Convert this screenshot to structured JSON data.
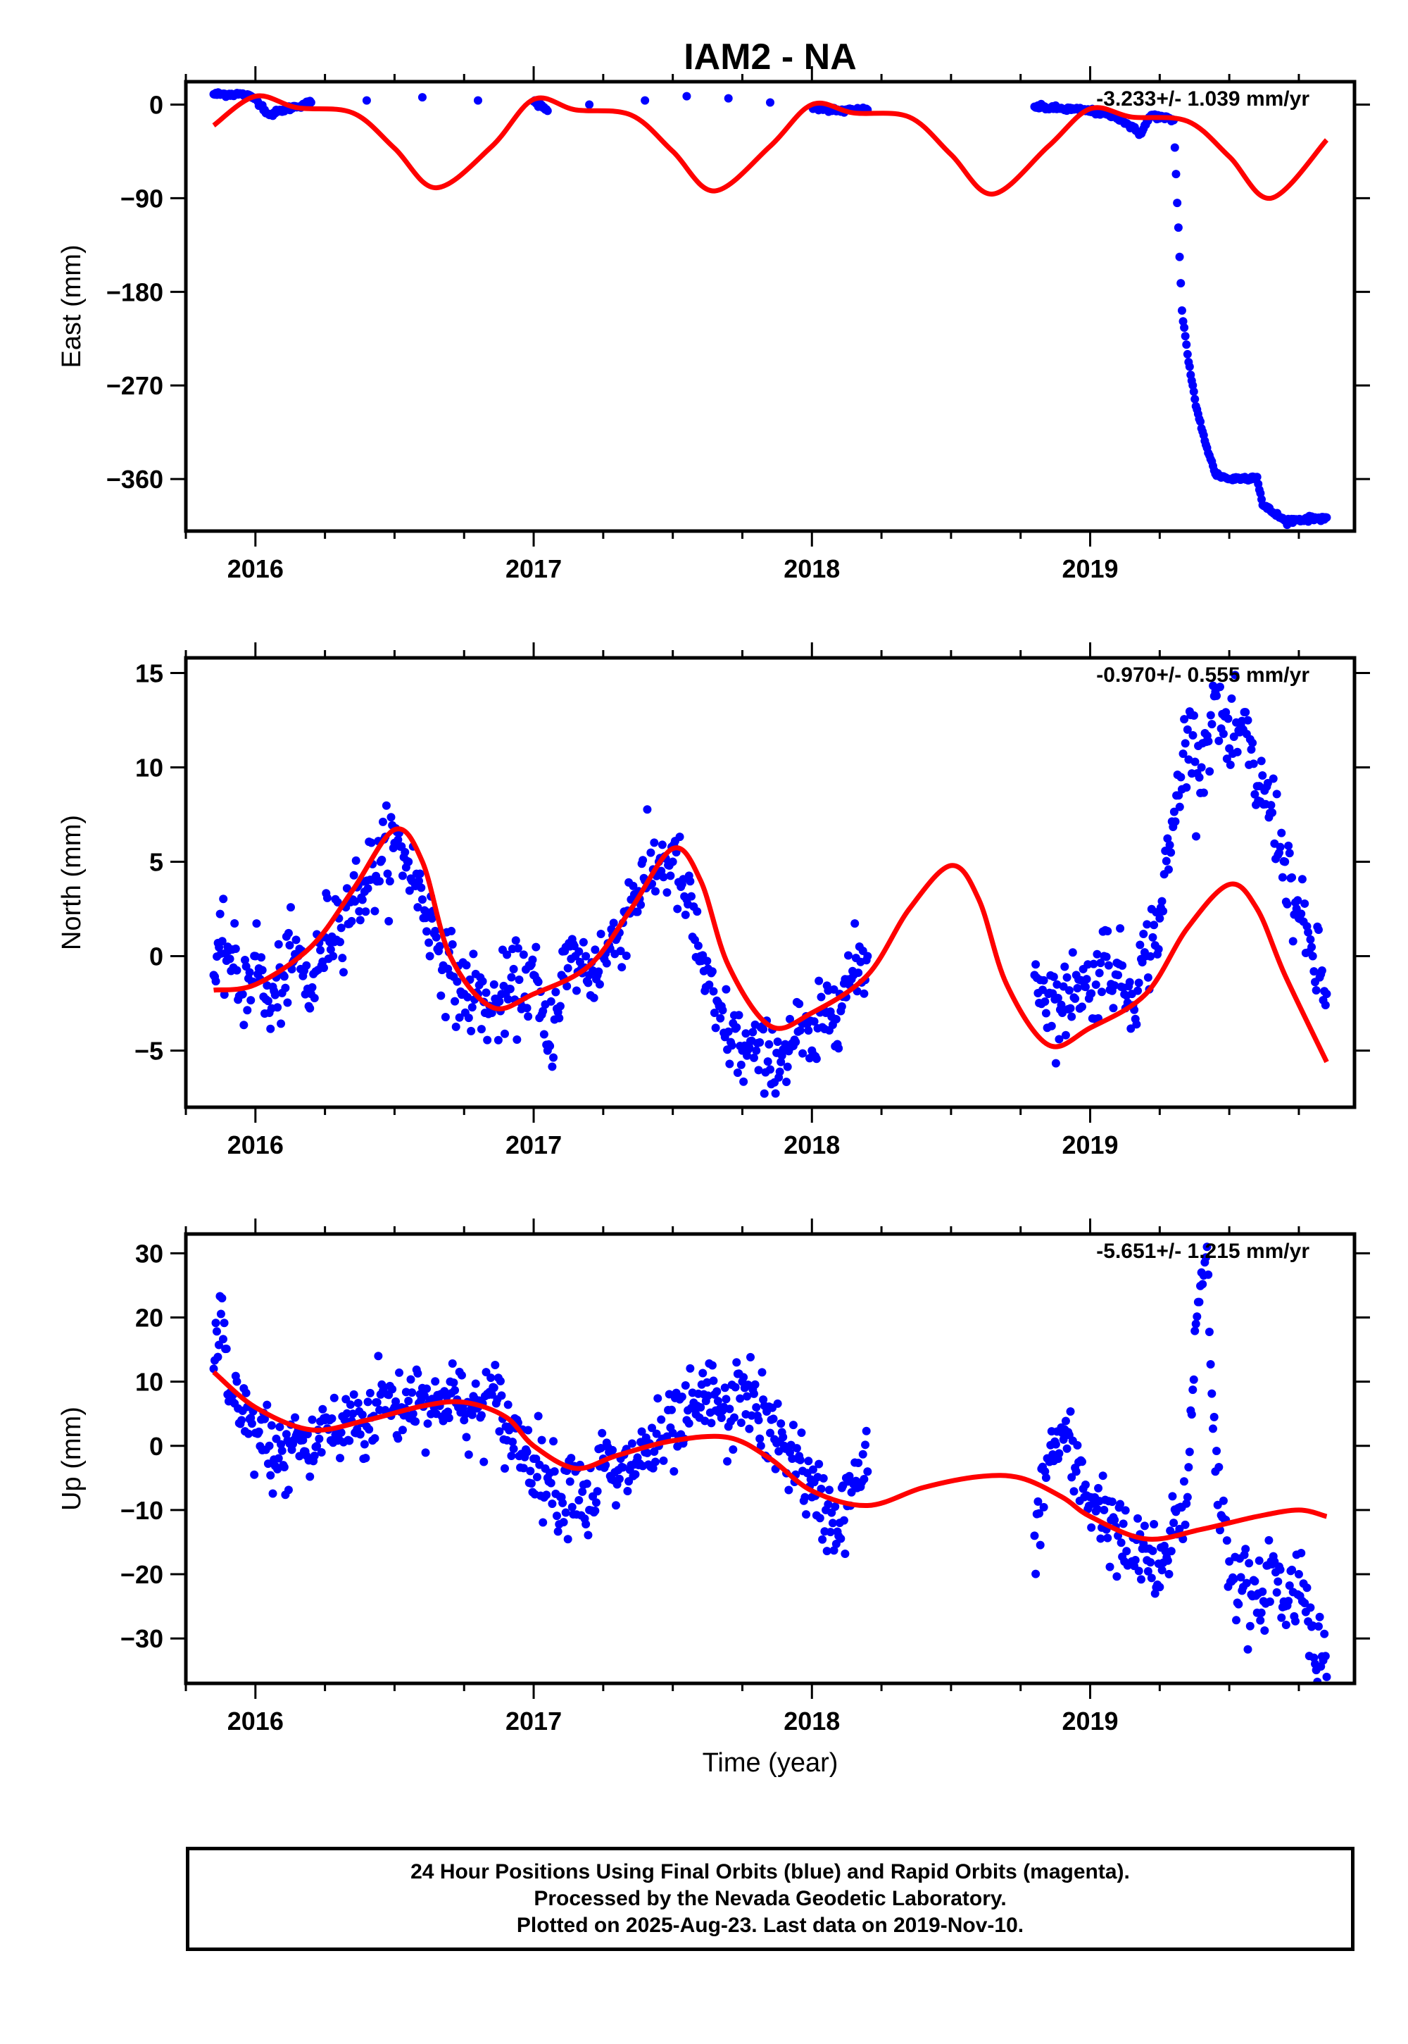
{
  "title": "IAM2 - NA",
  "colors": {
    "data": "#0000ff",
    "model": "#ff0000",
    "frame": "#000000"
  },
  "xlabel": "Time (year)",
  "footer": {
    "line1": "24 Hour Positions Using Final Orbits (blue) and Rapid Orbits (magenta).",
    "line2": "Processed by the Nevada Geodetic Laboratory.",
    "line3": "Plotted on 2025-Aug-23. Last data on 2019-Nov-10."
  },
  "chart_data": [
    {
      "type": "scatter",
      "ylabel": "East (mm)",
      "annotation": "-3.233+/- 1.039 mm/yr",
      "xlim": [
        2015.75,
        2019.95
      ],
      "ylim": [
        -410,
        22
      ],
      "xticks": [
        2016,
        2017,
        2018,
        2019
      ],
      "yticks": [
        0,
        -90,
        -180,
        -270,
        -360
      ],
      "observations": [
        [
          2015.85,
          10
        ],
        [
          2015.95,
          10
        ],
        [
          2016.0,
          6
        ],
        [
          2016.05,
          -10
        ],
        [
          2016.1,
          -5
        ],
        [
          2016.2,
          2
        ],
        [
          2016.4,
          4
        ],
        [
          2016.6,
          7
        ],
        [
          2016.8,
          4
        ],
        [
          2017.0,
          3
        ],
        [
          2017.05,
          -6
        ],
        [
          2017.2,
          0
        ],
        [
          2017.4,
          4
        ],
        [
          2017.55,
          8
        ],
        [
          2017.7,
          6
        ],
        [
          2017.85,
          2
        ],
        [
          2018.0,
          -2
        ],
        [
          2018.1,
          -6
        ],
        [
          2018.2,
          -5
        ],
        [
          2018.8,
          -2
        ],
        [
          2018.9,
          -4
        ],
        [
          2019.0,
          -6
        ],
        [
          2019.1,
          -12
        ],
        [
          2019.18,
          -28
        ],
        [
          2019.22,
          -10
        ],
        [
          2019.3,
          -15
        ],
        [
          2019.33,
          -198
        ],
        [
          2019.35,
          -240
        ],
        [
          2019.38,
          -290
        ],
        [
          2019.42,
          -330
        ],
        [
          2019.45,
          -355
        ],
        [
          2019.5,
          -360
        ],
        [
          2019.6,
          -358
        ],
        [
          2019.62,
          -385
        ],
        [
          2019.7,
          -400
        ],
        [
          2019.8,
          -398
        ],
        [
          2019.85,
          -397
        ]
      ],
      "model": [
        [
          2015.85,
          -20
        ],
        [
          2016.0,
          8
        ],
        [
          2016.15,
          -3
        ],
        [
          2016.35,
          -8
        ],
        [
          2016.5,
          -42
        ],
        [
          2016.65,
          -80
        ],
        [
          2016.85,
          -40
        ],
        [
          2017.0,
          5
        ],
        [
          2017.15,
          -5
        ],
        [
          2017.35,
          -10
        ],
        [
          2017.5,
          -45
        ],
        [
          2017.65,
          -83
        ],
        [
          2017.85,
          -40
        ],
        [
          2018.0,
          0
        ],
        [
          2018.15,
          -8
        ],
        [
          2018.35,
          -12
        ],
        [
          2018.5,
          -48
        ],
        [
          2018.65,
          -86
        ],
        [
          2018.85,
          -40
        ],
        [
          2019.0,
          -4
        ],
        [
          2019.15,
          -12
        ],
        [
          2019.35,
          -16
        ],
        [
          2019.5,
          -50
        ],
        [
          2019.65,
          -90
        ],
        [
          2019.85,
          -34
        ]
      ]
    },
    {
      "type": "scatter",
      "ylabel": "North (mm)",
      "annotation": "-0.970+/- 0.555 mm/yr",
      "xlim": [
        2015.75,
        2019.95
      ],
      "ylim": [
        -8,
        15.8
      ],
      "xticks": [
        2016,
        2017,
        2018,
        2019
      ],
      "yticks": [
        15,
        10,
        5,
        0,
        -5
      ],
      "observations": [
        [
          2015.85,
          -1
        ],
        [
          2015.9,
          0.5
        ],
        [
          2015.95,
          -2
        ],
        [
          2016.0,
          0
        ],
        [
          2016.05,
          -3
        ],
        [
          2016.1,
          -1
        ],
        [
          2016.15,
          0
        ],
        [
          2016.2,
          -2
        ],
        [
          2016.25,
          1
        ],
        [
          2016.3,
          2
        ],
        [
          2016.35,
          3
        ],
        [
          2016.4,
          4
        ],
        [
          2016.45,
          5
        ],
        [
          2016.5,
          6
        ],
        [
          2016.55,
          5
        ],
        [
          2016.6,
          3
        ],
        [
          2016.65,
          1
        ],
        [
          2016.7,
          -1
        ],
        [
          2016.75,
          -2
        ],
        [
          2016.8,
          -2
        ],
        [
          2016.85,
          -3
        ],
        [
          2016.9,
          -2
        ],
        [
          2017.0,
          -1
        ],
        [
          2017.05,
          -5
        ],
        [
          2017.1,
          -1
        ],
        [
          2017.15,
          0
        ],
        [
          2017.2,
          -1
        ],
        [
          2017.25,
          0
        ],
        [
          2017.3,
          1
        ],
        [
          2017.35,
          3
        ],
        [
          2017.4,
          4
        ],
        [
          2017.45,
          5
        ],
        [
          2017.5,
          5
        ],
        [
          2017.55,
          3
        ],
        [
          2017.6,
          0
        ],
        [
          2017.65,
          -3
        ],
        [
          2017.7,
          -4
        ],
        [
          2017.75,
          -5
        ],
        [
          2017.8,
          -5
        ],
        [
          2017.85,
          -6
        ],
        [
          2017.9,
          -5
        ],
        [
          2017.95,
          -4
        ],
        [
          2018.0,
          -5
        ],
        [
          2018.05,
          -3
        ],
        [
          2018.1,
          -2
        ],
        [
          2018.15,
          -1
        ],
        [
          2018.2,
          0
        ],
        [
          2018.8,
          -1
        ],
        [
          2018.85,
          -2
        ],
        [
          2018.9,
          -3
        ],
        [
          2018.95,
          -1
        ],
        [
          2019.0,
          -2
        ],
        [
          2019.05,
          0
        ],
        [
          2019.1,
          -1
        ],
        [
          2019.15,
          -2
        ],
        [
          2019.2,
          0
        ],
        [
          2019.25,
          2
        ],
        [
          2019.35,
          12
        ],
        [
          2019.4,
          10
        ],
        [
          2019.45,
          14
        ],
        [
          2019.5,
          11
        ],
        [
          2019.55,
          12
        ],
        [
          2019.6,
          9
        ],
        [
          2019.65,
          8
        ],
        [
          2019.7,
          5
        ],
        [
          2019.75,
          2
        ],
        [
          2019.8,
          0
        ],
        [
          2019.85,
          -2
        ]
      ],
      "model": [
        [
          2015.85,
          -1.8
        ],
        [
          2016.0,
          -1.5
        ],
        [
          2016.2,
          0.5
        ],
        [
          2016.35,
          3.5
        ],
        [
          2016.5,
          6.7
        ],
        [
          2016.6,
          5
        ],
        [
          2016.7,
          0
        ],
        [
          2016.85,
          -2.7
        ],
        [
          2017.0,
          -2
        ],
        [
          2017.2,
          -0.5
        ],
        [
          2017.35,
          2.5
        ],
        [
          2017.5,
          5.7
        ],
        [
          2017.6,
          4
        ],
        [
          2017.7,
          -0.5
        ],
        [
          2017.85,
          -3.7
        ],
        [
          2018.0,
          -3
        ],
        [
          2018.2,
          -1
        ],
        [
          2018.35,
          2.5
        ],
        [
          2018.5,
          4.8
        ],
        [
          2018.6,
          3
        ],
        [
          2018.7,
          -1.5
        ],
        [
          2018.85,
          -4.7
        ],
        [
          2019.0,
          -3.8
        ],
        [
          2019.2,
          -2
        ],
        [
          2019.35,
          1.5
        ],
        [
          2019.5,
          3.8
        ],
        [
          2019.6,
          2.5
        ],
        [
          2019.7,
          -1
        ],
        [
          2019.85,
          -5.6
        ]
      ]
    },
    {
      "type": "scatter",
      "ylabel": "Up (mm)",
      "annotation": "-5.651+/- 1.215 mm/yr",
      "xlim": [
        2015.75,
        2019.95
      ],
      "ylim": [
        -37,
        33
      ],
      "xticks": [
        2016,
        2017,
        2018,
        2019
      ],
      "yticks": [
        30,
        20,
        10,
        0,
        -10,
        -20,
        -30
      ],
      "observations": [
        [
          2015.85,
          12
        ],
        [
          2015.88,
          23
        ],
        [
          2015.9,
          8
        ],
        [
          2015.95,
          4
        ],
        [
          2016.0,
          2
        ],
        [
          2016.05,
          0
        ],
        [
          2016.1,
          -3
        ],
        [
          2016.15,
          2
        ],
        [
          2016.2,
          -2
        ],
        [
          2016.25,
          4
        ],
        [
          2016.3,
          1
        ],
        [
          2016.35,
          5
        ],
        [
          2016.4,
          3
        ],
        [
          2016.45,
          8
        ],
        [
          2016.5,
          6
        ],
        [
          2016.55,
          7
        ],
        [
          2016.6,
          9
        ],
        [
          2016.65,
          5
        ],
        [
          2016.7,
          10
        ],
        [
          2016.75,
          4
        ],
        [
          2016.8,
          6
        ],
        [
          2016.85,
          8
        ],
        [
          2016.9,
          3
        ],
        [
          2017.0,
          -2
        ],
        [
          2017.05,
          -5
        ],
        [
          2017.1,
          -8
        ],
        [
          2017.15,
          -4
        ],
        [
          2017.2,
          -10
        ],
        [
          2017.25,
          -2
        ],
        [
          2017.3,
          -6
        ],
        [
          2017.35,
          -3
        ],
        [
          2017.4,
          -1
        ],
        [
          2017.45,
          0
        ],
        [
          2017.5,
          2
        ],
        [
          2017.55,
          4
        ],
        [
          2017.6,
          6
        ],
        [
          2017.65,
          8
        ],
        [
          2017.7,
          3
        ],
        [
          2017.75,
          10
        ],
        [
          2017.8,
          6
        ],
        [
          2017.85,
          2
        ],
        [
          2017.9,
          0
        ],
        [
          2017.95,
          -2
        ],
        [
          2018.0,
          -8
        ],
        [
          2018.05,
          -10
        ],
        [
          2018.1,
          -12
        ],
        [
          2018.15,
          -6
        ],
        [
          2018.2,
          -4
        ],
        [
          2018.8,
          -14
        ],
        [
          2018.85,
          -2
        ],
        [
          2018.9,
          2
        ],
        [
          2018.95,
          -4
        ],
        [
          2019.0,
          -8
        ],
        [
          2019.05,
          -10
        ],
        [
          2019.1,
          -14
        ],
        [
          2019.15,
          -18
        ],
        [
          2019.2,
          -16
        ],
        [
          2019.25,
          -22
        ],
        [
          2019.3,
          -12
        ],
        [
          2019.35,
          -8
        ],
        [
          2019.38,
          19
        ],
        [
          2019.4,
          27
        ],
        [
          2019.42,
          31
        ],
        [
          2019.45,
          -4
        ],
        [
          2019.5,
          -18
        ],
        [
          2019.55,
          -22
        ],
        [
          2019.6,
          -26
        ],
        [
          2019.65,
          -18
        ],
        [
          2019.7,
          -25
        ],
        [
          2019.75,
          -20
        ],
        [
          2019.8,
          -28
        ],
        [
          2019.85,
          -36
        ]
      ],
      "model": [
        [
          2015.85,
          11.5
        ],
        [
          2016.0,
          6
        ],
        [
          2016.2,
          2.5
        ],
        [
          2016.4,
          4
        ],
        [
          2016.6,
          6.2
        ],
        [
          2016.75,
          6.8
        ],
        [
          2016.9,
          4.5
        ],
        [
          2017.0,
          0
        ],
        [
          2017.15,
          -3.5
        ],
        [
          2017.3,
          -1.5
        ],
        [
          2017.5,
          0.8
        ],
        [
          2017.7,
          1.3
        ],
        [
          2017.85,
          -2
        ],
        [
          2018.0,
          -7
        ],
        [
          2018.2,
          -9.3
        ],
        [
          2018.4,
          -6.5
        ],
        [
          2018.6,
          -4.8
        ],
        [
          2018.75,
          -5
        ],
        [
          2018.9,
          -8
        ],
        [
          2019.0,
          -11
        ],
        [
          2019.2,
          -14.5
        ],
        [
          2019.4,
          -13
        ],
        [
          2019.6,
          -11
        ],
        [
          2019.75,
          -10
        ],
        [
          2019.85,
          -11
        ]
      ]
    }
  ]
}
